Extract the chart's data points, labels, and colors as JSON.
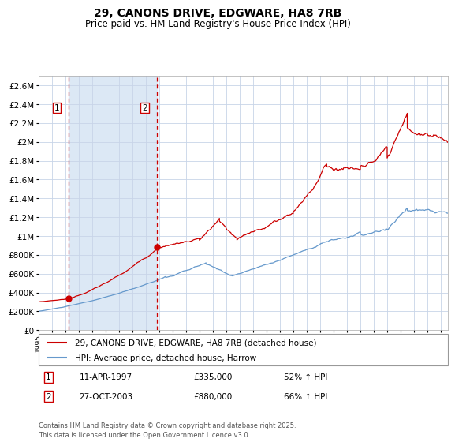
{
  "title": "29, CANONS DRIVE, EDGWARE, HA8 7RB",
  "subtitle": "Price paid vs. HM Land Registry's House Price Index (HPI)",
  "legend_line1": "29, CANONS DRIVE, EDGWARE, HA8 7RB (detached house)",
  "legend_line2": "HPI: Average price, detached house, Harrow",
  "transaction1_label": "1",
  "transaction1_date": "11-APR-1997",
  "transaction1_price": "£335,000",
  "transaction1_hpi": "52% ↑ HPI",
  "transaction1_year": 1997.27,
  "transaction2_label": "2",
  "transaction2_date": "27-OCT-2003",
  "transaction2_price": "£880,000",
  "transaction2_hpi": "66% ↑ HPI",
  "transaction2_year": 2003.82,
  "footer": "Contains HM Land Registry data © Crown copyright and database right 2025.\nThis data is licensed under the Open Government Licence v3.0.",
  "red_line_color": "#cc0000",
  "blue_line_color": "#6699cc",
  "grid_color": "#c8d4e8",
  "background_color": "#ffffff",
  "shaded_region_color": "#dce8f5",
  "dashed_line_color": "#cc0000",
  "xlim_min": 1995.0,
  "xlim_max": 2025.5,
  "ylim_min": 0,
  "ylim_max": 2700000
}
